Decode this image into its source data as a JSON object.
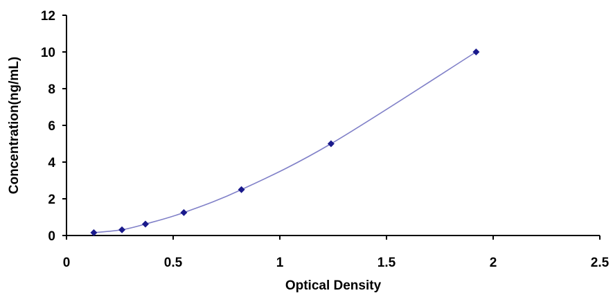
{
  "chart_data": {
    "type": "scatter",
    "title": "",
    "xlabel": "Optical Density",
    "ylabel": "Concentration(ng/mL)",
    "xlim": [
      0,
      2.5
    ],
    "ylim": [
      0,
      12
    ],
    "x_ticks": [
      "0",
      "0.5",
      "1",
      "1.5",
      "2",
      "2.5"
    ],
    "y_ticks": [
      "0",
      "2",
      "4",
      "6",
      "8",
      "10",
      "12"
    ],
    "grid": false,
    "legend": "none",
    "series": [
      {
        "x": [
          0.128,
          0.26,
          0.37,
          0.55,
          0.82,
          1.24,
          1.92
        ],
        "y": [
          0.156,
          0.313,
          0.625,
          1.25,
          2.5,
          5,
          10
        ],
        "marker": "diamond",
        "marker_color": "#1a1a8c",
        "line_color": "#8080c8",
        "fit": "smooth-curve"
      }
    ]
  }
}
